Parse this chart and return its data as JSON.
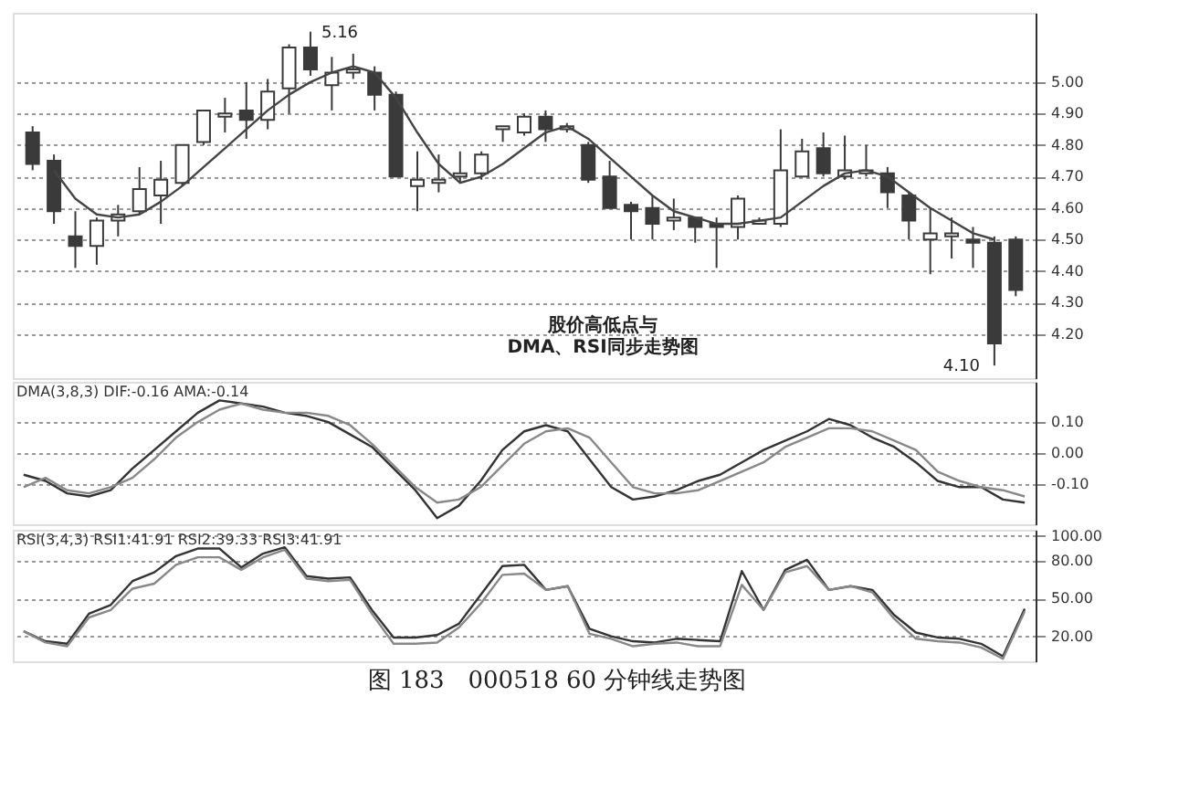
{
  "chart_data": [
    {
      "type": "candlestick",
      "title": "图 183　000518 60 分钟线走势图",
      "categories": [
        null,
        null,
        null,
        null,
        null,
        null,
        null,
        null,
        null,
        null,
        null,
        null,
        null,
        null,
        null,
        null,
        null,
        null,
        null,
        null,
        null,
        null,
        null,
        null,
        null,
        null,
        null,
        null,
        null,
        null,
        null,
        null,
        null,
        null,
        null,
        null,
        null,
        null,
        null,
        null,
        null,
        null,
        null,
        null,
        null,
        null,
        null
      ],
      "color": "#3a3a3a",
      "ohlc": [
        [
          4.84,
          4.86,
          4.72,
          4.74
        ],
        [
          4.75,
          4.77,
          4.55,
          4.59
        ],
        [
          4.51,
          4.59,
          4.41,
          4.48
        ],
        [
          4.48,
          4.57,
          4.42,
          4.56
        ],
        [
          4.56,
          4.61,
          4.51,
          4.58
        ],
        [
          4.59,
          4.73,
          4.58,
          4.66
        ],
        [
          4.64,
          4.75,
          4.55,
          4.69
        ],
        [
          4.68,
          4.8,
          4.67,
          4.8
        ],
        [
          4.81,
          4.91,
          4.8,
          4.91
        ],
        [
          4.89,
          4.95,
          4.84,
          4.9
        ],
        [
          4.91,
          5.0,
          4.82,
          4.88
        ],
        [
          4.88,
          5.01,
          4.85,
          4.97
        ],
        [
          4.98,
          5.12,
          4.9,
          5.11
        ],
        [
          5.11,
          5.16,
          5.02,
          5.04
        ],
        [
          4.99,
          5.08,
          4.91,
          5.03
        ],
        [
          5.03,
          5.09,
          5.01,
          5.04
        ],
        [
          5.03,
          5.05,
          4.91,
          4.96
        ],
        [
          4.96,
          4.97,
          4.7,
          4.7
        ],
        [
          4.67,
          4.78,
          4.59,
          4.69
        ],
        [
          4.68,
          4.77,
          4.65,
          4.69
        ],
        [
          4.7,
          4.78,
          4.68,
          4.71
        ],
        [
          4.71,
          4.78,
          4.69,
          4.77
        ],
        [
          4.85,
          4.86,
          4.81,
          4.86
        ],
        [
          4.84,
          4.9,
          4.83,
          4.89
        ],
        [
          4.89,
          4.91,
          4.81,
          4.85
        ],
        [
          4.85,
          4.87,
          4.84,
          4.86
        ],
        [
          4.8,
          4.81,
          4.68,
          4.69
        ],
        [
          4.7,
          4.75,
          4.6,
          4.6
        ],
        [
          4.61,
          4.62,
          4.5,
          4.59
        ],
        [
          4.6,
          4.64,
          4.5,
          4.55
        ],
        [
          4.56,
          4.63,
          4.53,
          4.57
        ],
        [
          4.57,
          4.57,
          4.49,
          4.54
        ],
        [
          4.55,
          4.57,
          4.41,
          4.54
        ],
        [
          4.54,
          4.64,
          4.5,
          4.63
        ],
        [
          4.55,
          4.57,
          4.55,
          4.56
        ],
        [
          4.55,
          4.85,
          4.54,
          4.72
        ],
        [
          4.7,
          4.82,
          4.7,
          4.78
        ],
        [
          4.79,
          4.84,
          4.7,
          4.71
        ],
        [
          4.7,
          4.83,
          4.69,
          4.72
        ],
        [
          4.71,
          4.8,
          4.7,
          4.72
        ],
        [
          4.71,
          4.73,
          4.6,
          4.65
        ],
        [
          4.64,
          4.65,
          4.5,
          4.56
        ],
        [
          4.5,
          4.6,
          4.39,
          4.52
        ],
        [
          4.51,
          4.57,
          4.44,
          4.52
        ],
        [
          4.5,
          4.54,
          4.41,
          4.49
        ],
        [
          4.49,
          4.51,
          4.1,
          4.17
        ],
        [
          4.5,
          4.51,
          4.32,
          4.34
        ]
      ],
      "series": [
        {
          "type": "line",
          "color": "#444444",
          "values": [
            null,
            4.72,
            4.63,
            4.58,
            4.57,
            4.58,
            4.62,
            4.67,
            4.73,
            4.79,
            4.85,
            4.91,
            4.96,
            5.0,
            5.03,
            5.05,
            5.03,
            4.95,
            4.84,
            4.74,
            4.68,
            4.7,
            4.74,
            4.79,
            4.84,
            4.86,
            4.82,
            4.76,
            4.7,
            4.64,
            4.59,
            4.57,
            4.55,
            4.55,
            4.56,
            4.57,
            4.62,
            4.67,
            4.71,
            4.72,
            4.7,
            4.65,
            4.6,
            4.56,
            4.52,
            4.5,
            null
          ]
        }
      ],
      "ylim": [
        4.06,
        5.22
      ],
      "yticks": [
        {
          "value": 4.2,
          "label": "4.20"
        },
        {
          "value": 4.3,
          "label": "4.30"
        },
        {
          "value": 4.4,
          "label": "4.40"
        },
        {
          "value": 4.5,
          "label": "4.50"
        },
        {
          "value": 4.6,
          "label": "4.60"
        },
        {
          "value": 4.7,
          "label": "4.70"
        },
        {
          "value": 4.8,
          "label": "4.80"
        },
        {
          "value": 4.9,
          "label": "4.90"
        },
        {
          "value": 5.0,
          "label": "5.00"
        }
      ],
      "grid": "y",
      "tick_labels": "y",
      "annotations": [
        "5.16",
        "4.10",
        "股价高低点与\nDMA、RSI同步走势图"
      ]
    },
    {
      "type": "line",
      "subtitle": "DMA(3,8,3) DIF:-0.16 AMA:-0.14",
      "categories": [
        null,
        null,
        null,
        null,
        null,
        null,
        null,
        null,
        null,
        null,
        null,
        null,
        null,
        null,
        null,
        null,
        null,
        null,
        null,
        null,
        null,
        null,
        null,
        null,
        null,
        null,
        null,
        null,
        null,
        null,
        null,
        null,
        null,
        null,
        null,
        null,
        null,
        null,
        null,
        null,
        null,
        null,
        null,
        null,
        null,
        null,
        null
      ],
      "series": [
        {
          "color": "#333333",
          "values": [
            -0.07,
            -0.09,
            -0.13,
            -0.14,
            -0.12,
            -0.05,
            0.01,
            0.07,
            0.13,
            0.17,
            0.16,
            0.15,
            0.13,
            0.12,
            0.1,
            0.06,
            0.02,
            -0.05,
            -0.12,
            -0.21,
            -0.17,
            -0.09,
            0.01,
            0.07,
            0.09,
            0.07,
            -0.02,
            -0.11,
            -0.15,
            -0.14,
            -0.12,
            -0.09,
            -0.07,
            -0.03,
            0.01,
            0.04,
            0.07,
            0.11,
            0.09,
            0.05,
            0.02,
            -0.03,
            -0.09,
            -0.11,
            -0.11,
            -0.15,
            -0.16
          ]
        },
        {
          "color": "#888888",
          "values": [
            -0.11,
            -0.08,
            -0.12,
            -0.13,
            -0.11,
            -0.08,
            -0.02,
            0.05,
            0.1,
            0.14,
            0.16,
            0.14,
            0.13,
            0.13,
            0.12,
            0.09,
            0.03,
            -0.04,
            -0.11,
            -0.16,
            -0.15,
            -0.11,
            -0.04,
            0.03,
            0.07,
            0.08,
            0.05,
            -0.03,
            -0.11,
            -0.13,
            -0.13,
            -0.12,
            -0.09,
            -0.06,
            -0.03,
            0.02,
            0.05,
            0.08,
            0.08,
            0.07,
            0.04,
            0.01,
            -0.06,
            -0.09,
            -0.11,
            -0.12,
            -0.14
          ]
        }
      ],
      "ylim": [
        -0.23,
        0.23
      ],
      "yticks": [
        {
          "value": -0.1,
          "label": "-0.10"
        },
        {
          "value": 0,
          "label": "0.00"
        },
        {
          "value": 0.1,
          "label": "0.10"
        }
      ],
      "grid": "y",
      "tick_labels": "y"
    },
    {
      "type": "line",
      "subtitle": "RSI(3,4,3) RSI1:41.91 RSI2:39.33 RSI3:41.91",
      "categories": [
        null,
        null,
        null,
        null,
        null,
        null,
        null,
        null,
        null,
        null,
        null,
        null,
        null,
        null,
        null,
        null,
        null,
        null,
        null,
        null,
        null,
        null,
        null,
        null,
        null,
        null,
        null,
        null,
        null,
        null,
        null,
        null,
        null,
        null,
        null,
        null,
        null,
        null,
        null,
        null,
        null,
        null,
        null,
        null,
        null,
        null,
        null
      ],
      "series": [
        {
          "color": "#333333",
          "values": [
            24,
            16,
            14,
            38,
            45,
            64,
            71,
            84,
            90,
            90,
            75,
            86,
            91,
            68,
            66,
            67,
            41,
            19,
            19,
            21,
            30,
            53,
            76,
            77,
            57,
            60,
            26,
            20,
            16,
            15,
            18,
            17,
            16,
            72,
            41,
            73,
            81,
            57,
            60,
            57,
            37,
            23,
            19,
            18,
            14,
            4,
            42
          ]
        },
        {
          "color": "#888888",
          "values": [
            24,
            15,
            12,
            35,
            41,
            58,
            62,
            77,
            83,
            83,
            73,
            83,
            89,
            66,
            64,
            65,
            38,
            14,
            14,
            15,
            27,
            46,
            69,
            70,
            57,
            60,
            22,
            18,
            12,
            14,
            15,
            12,
            12,
            61,
            41,
            71,
            76,
            57,
            60,
            55,
            34,
            18,
            16,
            15,
            11,
            2,
            40
          ]
        }
      ],
      "ylim": [
        0,
        105
      ],
      "yticks": [
        {
          "value": 20,
          "label": "20.00"
        },
        {
          "value": 50,
          "label": "50.00"
        },
        {
          "value": 80,
          "label": "80.00"
        },
        {
          "value": 100,
          "label": "100.00"
        }
      ],
      "grid": "y",
      "tick_labels": "y"
    }
  ]
}
